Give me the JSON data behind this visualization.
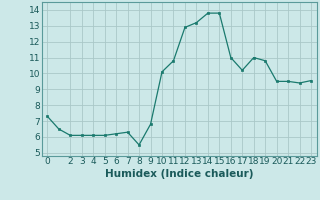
{
  "x": [
    0,
    1,
    2,
    3,
    4,
    5,
    6,
    7,
    8,
    9,
    10,
    11,
    12,
    13,
    14,
    15,
    16,
    17,
    18,
    19,
    20,
    21,
    22,
    23
  ],
  "y": [
    7.3,
    6.5,
    6.1,
    6.1,
    6.1,
    6.1,
    6.2,
    6.3,
    5.5,
    6.8,
    10.1,
    10.8,
    12.9,
    13.2,
    13.8,
    13.8,
    11.0,
    10.2,
    11.0,
    10.8,
    9.5,
    9.5,
    9.4,
    9.55
  ],
  "line_color": "#1a7a6e",
  "marker": "s",
  "marker_size": 1.8,
  "bg_color": "#cce8e8",
  "grid_color": "#aac8c8",
  "xlabel": "Humidex (Indice chaleur)",
  "xlim": [
    -0.5,
    23.5
  ],
  "ylim": [
    4.8,
    14.5
  ],
  "yticks": [
    5,
    6,
    7,
    8,
    9,
    10,
    11,
    12,
    13,
    14
  ],
  "xticks": [
    0,
    2,
    3,
    4,
    5,
    6,
    7,
    8,
    9,
    10,
    11,
    12,
    13,
    14,
    15,
    16,
    17,
    18,
    19,
    20,
    21,
    22,
    23
  ],
  "font_size": 6.5,
  "label_font_size": 7.5
}
